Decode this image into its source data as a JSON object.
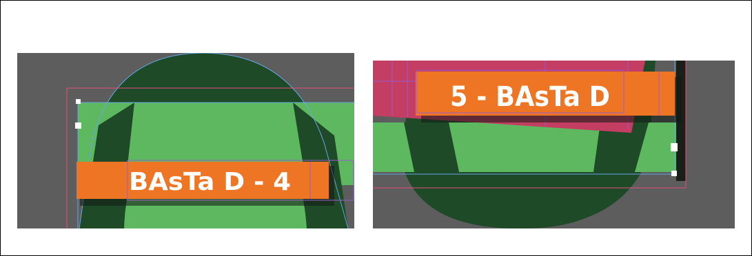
{
  "colors": {
    "pasteboard": "#5d5d5d",
    "arch_dark": "#1f4a28",
    "field_green": "#5db85f",
    "label_orange": "#ee7524",
    "label_text": "#ffffff",
    "magenta_panel": "#c43d62",
    "guide_pink": "#e8507c",
    "guide_blue": "#66a6e6",
    "guide_purple": "#9c5ccc",
    "handle": "#ffffff"
  },
  "panels": {
    "left": {
      "label": "BAsTa D - 4"
    },
    "right": {
      "label": "5 - BAsTa D"
    }
  }
}
